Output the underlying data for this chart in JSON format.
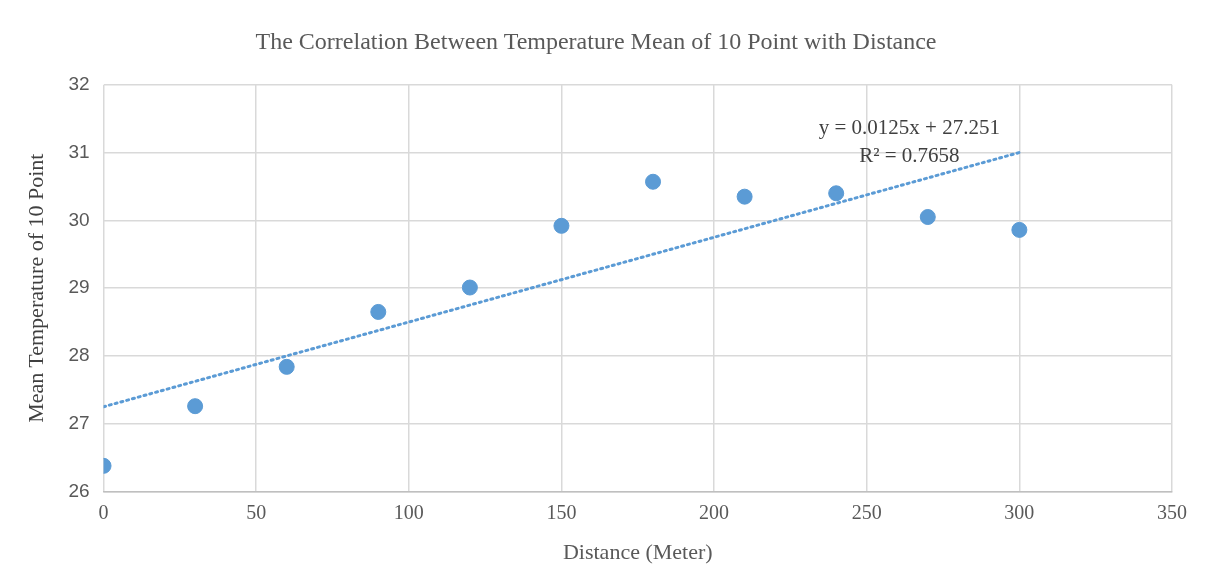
{
  "chart_data": {
    "type": "scatter",
    "title": "The Correlation Between Temperature Mean of 10 Point with Distance",
    "xlabel": "Distance (Meter)",
    "ylabel": "Mean Temperature of 10 Point",
    "x": [
      0,
      30,
      60,
      90,
      120,
      150,
      180,
      210,
      240,
      270,
      300
    ],
    "series": [
      {
        "color": "#5b9bd5",
        "values": [
          26.38,
          27.26,
          27.84,
          28.65,
          29.01,
          29.92,
          30.57,
          30.35,
          30.4,
          30.05,
          29.86
        ],
        "marker": "circle"
      },
      {
        "type": "line",
        "x": [
          0,
          300
        ],
        "color": "#5b9bd5",
        "values": [
          27.251,
          31.001
        ],
        "line_style": "dotted",
        "marker": "none"
      }
    ],
    "annotations": [
      "y = 0.0125x + 27.251",
      "R² = 0.7658"
    ],
    "xlim": [
      0,
      350
    ],
    "xticks": [
      0,
      50,
      100,
      150,
      200,
      250,
      300,
      350
    ],
    "ylim": [
      26,
      32
    ],
    "yticks": [
      26,
      27,
      28,
      29,
      30,
      31,
      32
    ],
    "grid": true,
    "legend": false
  }
}
